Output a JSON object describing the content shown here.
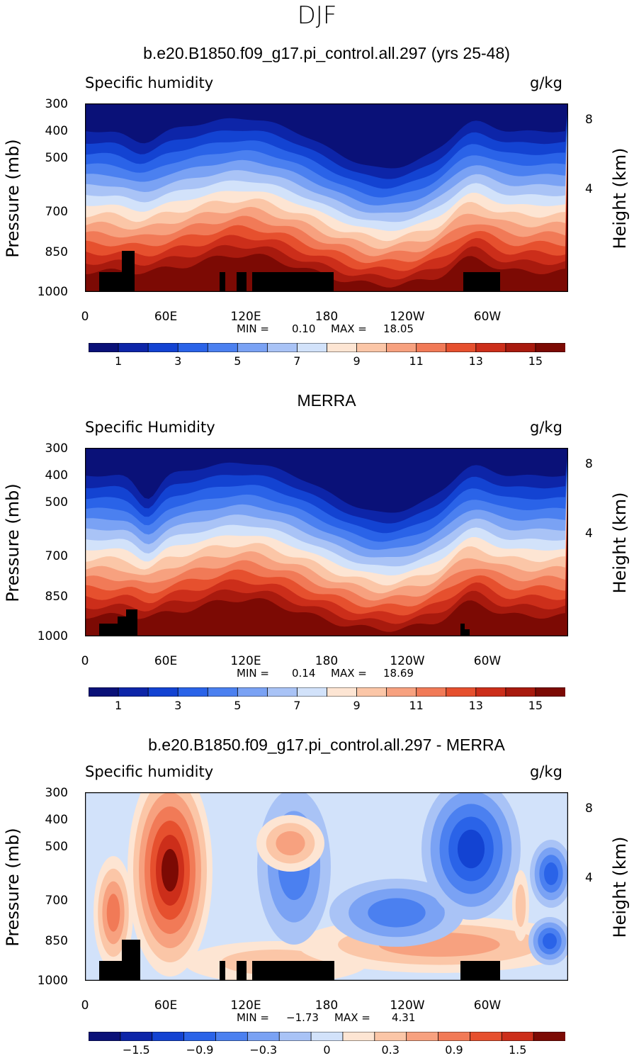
{
  "season": "DJF",
  "chart_data": [
    {
      "type": "heatmap",
      "title": "b.e20.B1850.f09_g17.pi_control.all.297 (yrs 25-48)",
      "variable_label": "Specific humidity",
      "units": "g/kg",
      "ylabel": "Pressure (mb)",
      "y2label": "Height (km)",
      "y_ticks": [
        "300",
        "400",
        "500",
        "700",
        "850",
        "1000"
      ],
      "y2_ticks": [
        "8",
        "4"
      ],
      "x_ticks": [
        "0",
        "60E",
        "120E",
        "180",
        "120W",
        "60W"
      ],
      "min_label": "MIN =",
      "min_value": "0.10",
      "max_label": "MAX =",
      "max_value": "18.05",
      "colorbar_labels": [
        "1",
        "3",
        "5",
        "7",
        "9",
        "11",
        "13",
        "15"
      ],
      "colorbar_levels": [
        1,
        2,
        3,
        4,
        5,
        6,
        7,
        8,
        9,
        10,
        11,
        12,
        13,
        14,
        15
      ]
    },
    {
      "type": "heatmap",
      "title": "MERRA",
      "variable_label": "Specific Humidity",
      "units": "g/kg",
      "ylabel": "Pressure (mb)",
      "y2label": "Height (km)",
      "y_ticks": [
        "300",
        "400",
        "500",
        "700",
        "850",
        "1000"
      ],
      "y2_ticks": [
        "8",
        "4"
      ],
      "x_ticks": [
        "0",
        "60E",
        "120E",
        "180",
        "120W",
        "60W"
      ],
      "min_label": "MIN =",
      "min_value": "0.14",
      "max_label": "MAX =",
      "max_value": "18.69",
      "colorbar_labels": [
        "1",
        "3",
        "5",
        "7",
        "9",
        "11",
        "13",
        "15"
      ],
      "colorbar_levels": [
        1,
        2,
        3,
        4,
        5,
        6,
        7,
        8,
        9,
        10,
        11,
        12,
        13,
        14,
        15
      ]
    },
    {
      "type": "heatmap",
      "title": "b.e20.B1850.f09_g17.pi_control.all.297 - MERRA",
      "variable_label": "Specific humidity",
      "units": "g/kg",
      "ylabel": "Pressure (mb)",
      "y2label": "Height (km)",
      "y_ticks": [
        "300",
        "400",
        "500",
        "700",
        "850",
        "1000"
      ],
      "y2_ticks": [
        "8",
        "4"
      ],
      "x_ticks": [
        "0",
        "60E",
        "120E",
        "180",
        "120W",
        "60W"
      ],
      "min_label": "MIN =",
      "min_value": "−1.73",
      "max_label": "MAX =",
      "max_value": "4.31",
      "colorbar_labels": [
        "−1.5",
        "−0.9",
        "−0.3",
        "0",
        "0.3",
        "0.9",
        "1.5"
      ],
      "colorbar_levels": [
        -1.8,
        -1.5,
        -1.2,
        -0.9,
        -0.6,
        -0.3,
        0,
        0.15,
        0.3,
        0.6,
        0.9,
        1.2,
        1.5,
        1.8
      ]
    }
  ],
  "colors": {
    "levels16": [
      "#0a1178",
      "#0d25a8",
      "#1343d2",
      "#2a63e8",
      "#4b80f0",
      "#7aa2f4",
      "#a9c3f6",
      "#d2e2fa",
      "#fde5d3",
      "#fbc6a7",
      "#f7a17f",
      "#f17a57",
      "#e6502e",
      "#cc2e1a",
      "#a81a0e",
      "#7c0a04"
    ],
    "diff15": [
      "#0a1178",
      "#0d25a8",
      "#1343d2",
      "#2a63e8",
      "#4b80f0",
      "#7aa2f4",
      "#a9c3f6",
      "#d2e2fa",
      "#fde5d3",
      "#fbc6a7",
      "#f7a17f",
      "#f17a57",
      "#e6502e",
      "#cc2e1a",
      "#7c0a04"
    ],
    "topography": "#000000"
  }
}
